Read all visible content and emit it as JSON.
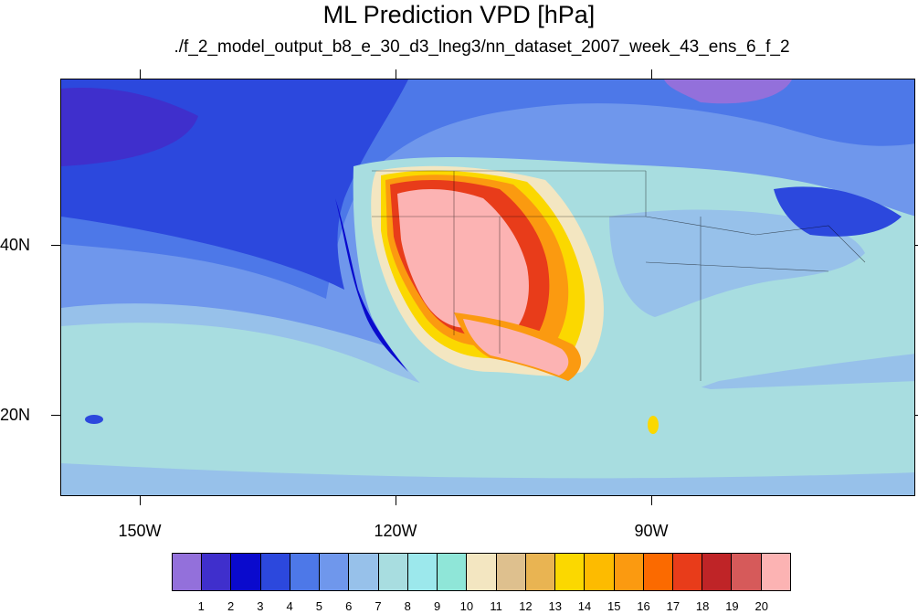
{
  "title": "ML Prediction VPD [hPa]",
  "subtitle": "./f_2_model_output_b8_e_30_d3_lneg3/nn_dataset_2007_week_43_ens_6_f_2",
  "map": {
    "lat_labels": [
      "40N",
      "20N"
    ],
    "lon_labels": [
      "150W",
      "120W",
      "90W"
    ]
  },
  "colorbar": {
    "colors": [
      "#9370db",
      "#3f2fcc",
      "#0a0acd",
      "#2c48dd",
      "#4d78e8",
      "#6f97ec",
      "#97c1ea",
      "#a8dde0",
      "#9ce8ec",
      "#8fe6d8",
      "#f3e6c1",
      "#dec08e",
      "#e9b452",
      "#fbd800",
      "#fdbb00",
      "#fb9a10",
      "#fb6a00",
      "#e83c1a",
      "#bf2427",
      "#d65a5a",
      "#fcb3b3"
    ],
    "labels": [
      "1",
      "2",
      "3",
      "4",
      "5",
      "6",
      "7",
      "8",
      "9",
      "10",
      "11",
      "12",
      "13",
      "14",
      "15",
      "16",
      "17",
      "18",
      "19",
      "20"
    ]
  }
}
